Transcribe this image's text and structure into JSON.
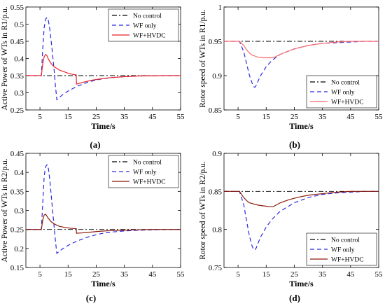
{
  "chart_data": [
    {
      "id": "a",
      "type": "line",
      "panel_label": "(a)",
      "title": "",
      "xlabel": "Time/s",
      "ylabel": "Active Power of WTs in R1/p.u.",
      "xlim": [
        0,
        55
      ],
      "ylim": [
        0.25,
        0.55
      ],
      "xticks": [
        5,
        15,
        25,
        35,
        45,
        55
      ],
      "yticks": [
        0.25,
        0.3,
        0.35,
        0.4,
        0.45,
        0.5,
        0.55
      ],
      "ytick_labels": [
        "0.25",
        "0.3",
        "0.35",
        "0.4",
        "0.45",
        "0.5",
        "0.55"
      ],
      "grid": false,
      "legend": "top-right",
      "series": [
        {
          "name": "No control",
          "color": "#000000",
          "dash": "dashdot",
          "x": [
            0,
            55
          ],
          "y": [
            0.35,
            0.35
          ]
        },
        {
          "name": "WF only",
          "color": "#2a2ae0",
          "dash": "dashed",
          "x": [
            0,
            5.5,
            6,
            6.5,
            7,
            7.5,
            8,
            8.5,
            9,
            9.5,
            10,
            10.5,
            11,
            13,
            15,
            18,
            22,
            26,
            30,
            35,
            40,
            45,
            50,
            55
          ],
          "y": [
            0.35,
            0.35,
            0.43,
            0.49,
            0.515,
            0.519,
            0.51,
            0.485,
            0.45,
            0.41,
            0.37,
            0.32,
            0.28,
            0.294,
            0.305,
            0.318,
            0.331,
            0.339,
            0.344,
            0.347,
            0.349,
            0.3495,
            0.35,
            0.35
          ]
        },
        {
          "name": "WF+HVDC",
          "color": "#e8262b",
          "dash": "solid",
          "x": [
            0,
            5.5,
            6,
            6.5,
            7,
            7.5,
            8,
            9,
            10,
            11,
            12,
            13,
            14,
            15,
            16,
            17,
            17.9,
            18,
            20,
            23,
            26,
            30,
            35,
            40,
            45,
            50,
            55
          ],
          "y": [
            0.35,
            0.35,
            0.385,
            0.405,
            0.412,
            0.408,
            0.398,
            0.385,
            0.376,
            0.371,
            0.366,
            0.363,
            0.36,
            0.357,
            0.355,
            0.353,
            0.352,
            0.325,
            0.33,
            0.336,
            0.34,
            0.344,
            0.347,
            0.349,
            0.3495,
            0.35,
            0.35
          ]
        }
      ]
    },
    {
      "id": "b",
      "type": "line",
      "panel_label": "(b)",
      "title": "",
      "xlabel": "Time/s",
      "ylabel": "Rotor speed of WTs in R1/p.u.",
      "xlim": [
        0,
        55
      ],
      "ylim": [
        0.85,
        1.0
      ],
      "xticks": [
        5,
        15,
        25,
        35,
        45,
        55
      ],
      "yticks": [
        0.85,
        0.9,
        0.95,
        1.0
      ],
      "ytick_labels": [
        "0.85",
        "0.9",
        "0.95",
        "1"
      ],
      "grid": false,
      "legend": "bottom-right",
      "series": [
        {
          "name": "No control",
          "color": "#000000",
          "dash": "dashdot",
          "x": [
            0,
            55
          ],
          "y": [
            0.95,
            0.95
          ]
        },
        {
          "name": "WF only",
          "color": "#2a2ae0",
          "dash": "dashed",
          "x": [
            0,
            5.5,
            7,
            8,
            9,
            10,
            10.5,
            11,
            11.5,
            12,
            13,
            15,
            17,
            20,
            25,
            30,
            35,
            40,
            45,
            50,
            55
          ],
          "y": [
            0.95,
            0.95,
            0.935,
            0.918,
            0.901,
            0.889,
            0.884,
            0.883,
            0.886,
            0.891,
            0.9,
            0.913,
            0.922,
            0.931,
            0.939,
            0.944,
            0.947,
            0.948,
            0.949,
            0.95,
            0.95
          ]
        },
        {
          "name": "WF+HVDC",
          "color": "#ff6b6b",
          "dash": "solid",
          "x": [
            0,
            5.5,
            7,
            8,
            9,
            10,
            12,
            14,
            16,
            17.5,
            18,
            20,
            23,
            26,
            30,
            35,
            40,
            45,
            50,
            55
          ],
          "y": [
            0.95,
            0.95,
            0.944,
            0.938,
            0.933,
            0.93,
            0.927,
            0.926,
            0.926,
            0.926,
            0.927,
            0.931,
            0.936,
            0.94,
            0.944,
            0.947,
            0.949,
            0.95,
            0.95,
            0.95
          ]
        }
      ]
    },
    {
      "id": "c",
      "type": "line",
      "panel_label": "(c)",
      "title": "",
      "xlabel": "Time/s",
      "ylabel": "Active Power of WTs in R2/p.u.",
      "xlim": [
        0,
        55
      ],
      "ylim": [
        0.15,
        0.45
      ],
      "xticks": [
        5,
        15,
        25,
        35,
        45,
        55
      ],
      "yticks": [
        0.15,
        0.2,
        0.25,
        0.3,
        0.35,
        0.4,
        0.45
      ],
      "ytick_labels": [
        "0.15",
        "0.2",
        "0.25",
        "0.3",
        "0.35",
        "0.4",
        "0.45"
      ],
      "grid": false,
      "legend": "top-right",
      "series": [
        {
          "name": "No control",
          "color": "#000000",
          "dash": "dashdot",
          "x": [
            0,
            55
          ],
          "y": [
            0.25,
            0.25
          ]
        },
        {
          "name": "WF only",
          "color": "#2a2ae0",
          "dash": "dashed",
          "x": [
            0,
            5.5,
            6,
            6.5,
            7,
            7.5,
            8,
            8.5,
            9,
            9.5,
            10,
            10.5,
            11,
            13,
            15,
            18,
            22,
            26,
            30,
            35,
            40,
            45,
            50,
            55
          ],
          "y": [
            0.25,
            0.25,
            0.32,
            0.39,
            0.415,
            0.42,
            0.41,
            0.38,
            0.34,
            0.3,
            0.26,
            0.22,
            0.187,
            0.199,
            0.208,
            0.219,
            0.23,
            0.238,
            0.243,
            0.246,
            0.248,
            0.249,
            0.25,
            0.25
          ]
        },
        {
          "name": "WF+HVDC",
          "color": "#8b1a0a",
          "dash": "solid",
          "x": [
            0,
            5.5,
            6,
            6.5,
            7,
            8,
            9,
            10,
            11,
            12,
            14,
            16,
            17.9,
            18,
            20,
            23,
            26,
            30,
            35,
            40,
            45,
            50,
            55
          ],
          "y": [
            0.25,
            0.25,
            0.275,
            0.288,
            0.29,
            0.279,
            0.27,
            0.265,
            0.261,
            0.258,
            0.255,
            0.253,
            0.252,
            0.24,
            0.241,
            0.243,
            0.245,
            0.247,
            0.248,
            0.249,
            0.25,
            0.25,
            0.25
          ]
        }
      ]
    },
    {
      "id": "d",
      "type": "line",
      "panel_label": "(d)",
      "title": "",
      "xlabel": "Time/s",
      "ylabel": "Rotor speed of WTs in R2/p.u.",
      "xlim": [
        0,
        55
      ],
      "ylim": [
        0.75,
        0.9
      ],
      "xticks": [
        5,
        15,
        25,
        35,
        45,
        55
      ],
      "yticks": [
        0.75,
        0.8,
        0.85,
        0.9
      ],
      "ytick_labels": [
        "0.75",
        "0.8",
        "0.85",
        "0.9"
      ],
      "grid": false,
      "legend": "bottom-right",
      "series": [
        {
          "name": "No control",
          "color": "#000000",
          "dash": "dashdot",
          "x": [
            0,
            55
          ],
          "y": [
            0.85,
            0.85
          ]
        },
        {
          "name": "WF only",
          "color": "#2a2ae0",
          "dash": "dashed",
          "x": [
            0,
            5.5,
            7,
            8,
            9,
            10,
            10.5,
            11,
            11.5,
            12,
            13,
            15,
            17,
            20,
            25,
            30,
            35,
            40,
            45,
            50,
            55
          ],
          "y": [
            0.85,
            0.85,
            0.833,
            0.812,
            0.792,
            0.778,
            0.774,
            0.773,
            0.776,
            0.781,
            0.79,
            0.803,
            0.813,
            0.824,
            0.835,
            0.842,
            0.846,
            0.848,
            0.849,
            0.85,
            0.85
          ]
        },
        {
          "name": "WF+HVDC",
          "color": "#8b1a0a",
          "dash": "solid",
          "x": [
            0,
            5.5,
            7,
            8,
            9,
            10,
            12,
            14,
            16,
            17.5,
            18,
            20,
            23,
            26,
            30,
            35,
            40,
            45,
            50,
            55
          ],
          "y": [
            0.85,
            0.85,
            0.842,
            0.838,
            0.835,
            0.834,
            0.832,
            0.831,
            0.83,
            0.83,
            0.831,
            0.835,
            0.839,
            0.842,
            0.845,
            0.847,
            0.849,
            0.85,
            0.85,
            0.85
          ]
        }
      ]
    }
  ]
}
